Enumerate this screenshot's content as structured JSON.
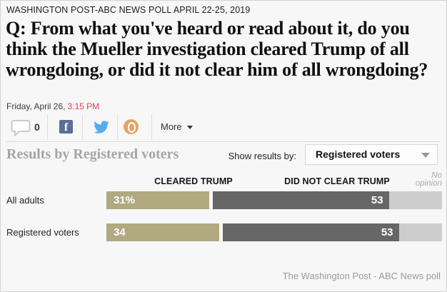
{
  "kicker": "WASHINGTON POST-ABC NEWS POLL APRIL 22-25, 2019",
  "question": "Q: From what you've heard or read about it, do you think the Mueller investigation cleared Trump of all wrongdoing, or did it not clear him of all wrongdoing?",
  "dateline": {
    "date": "Friday, April 26,",
    "time": "3:15 PM"
  },
  "social": {
    "comment_count": "0",
    "facebook_label": "f",
    "more_label": "More"
  },
  "results_bar": {
    "heading": "Results by Registered voters",
    "show_results_label": "Show results by:",
    "dropdown_value": "Registered voters"
  },
  "chart_data": {
    "type": "bar",
    "stacked": true,
    "orientation": "horizontal",
    "xlim": [
      0,
      100
    ],
    "column_headers": [
      "CLEARED TRUMP",
      "DID NOT CLEAR TRUMP"
    ],
    "no_opinion_header": "No opinion",
    "categories": [
      "All adults",
      "Registered voters"
    ],
    "series": [
      {
        "name": "Cleared Trump",
        "color": "#b1aa80",
        "values": [
          31,
          34
        ]
      },
      {
        "name": "Did not clear Trump",
        "color": "#666666",
        "values": [
          53,
          53
        ]
      },
      {
        "name": "No opinion",
        "color": "#cccccc",
        "values": [
          16,
          13
        ]
      }
    ],
    "value_labels": [
      [
        "31%",
        "53"
      ],
      [
        "34",
        "53"
      ]
    ]
  },
  "footer": "The Washington Post - ABC News poll",
  "colors": {
    "time_accent": "#e23a50",
    "bar_cleared": "#b1aa80",
    "bar_did_not_clear": "#666666",
    "bar_no_opinion": "#cccccc",
    "twitter_blue": "#55acee",
    "facebook_blue": "#5b6e96",
    "share_orange": "#e2a468"
  }
}
